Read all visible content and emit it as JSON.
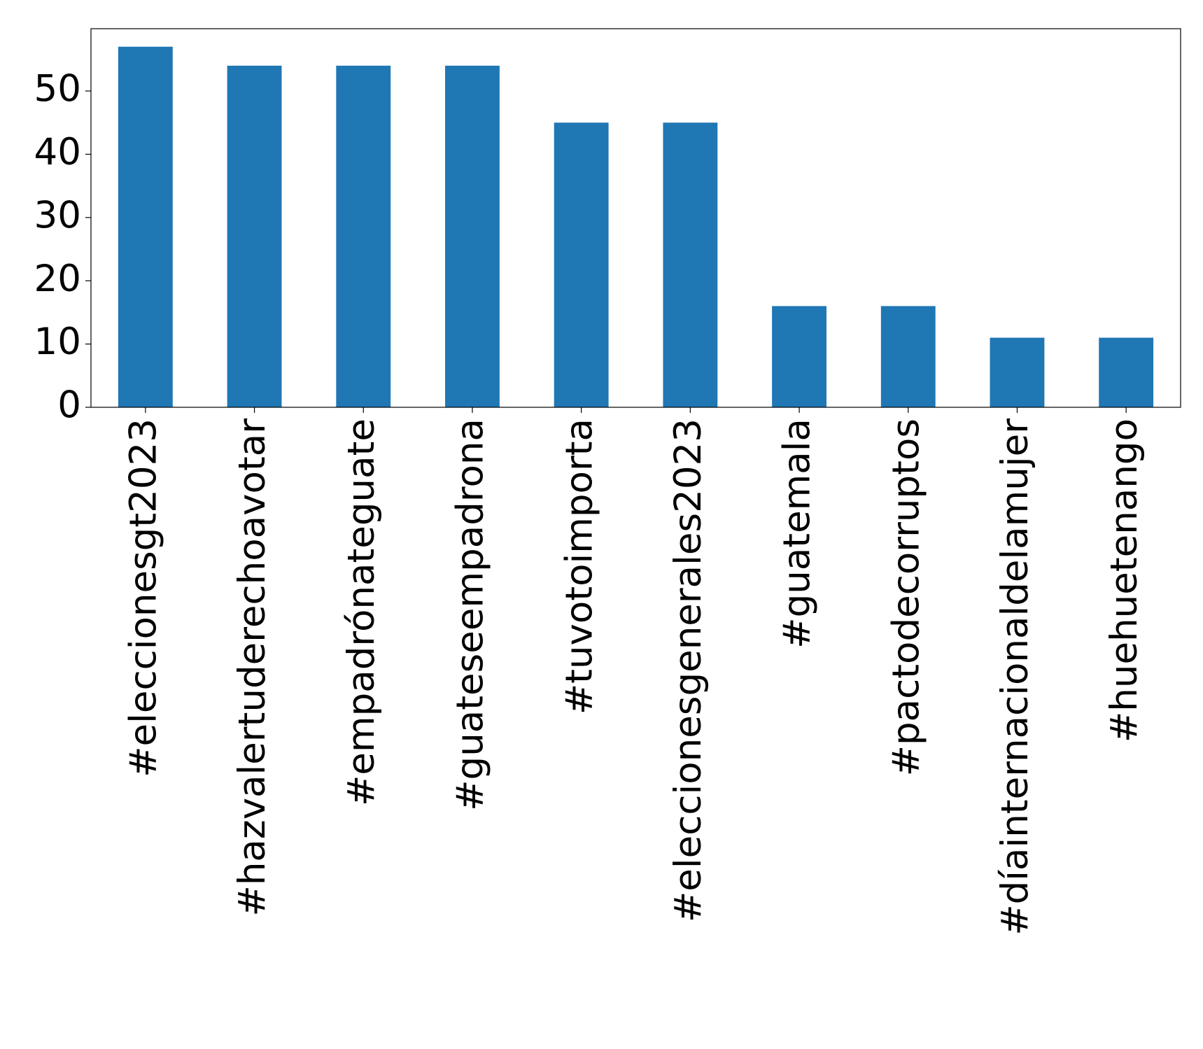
{
  "chart_data": {
    "type": "bar",
    "categories": [
      "#eleccionesgt2023",
      "#hazvalertuderechoavotar",
      "#empadrónateguate",
      "#guateseempadrona",
      "#tuvotoimporta",
      "#eleccionesgenerales2023",
      "#guatemala",
      "#pactodecorruptos",
      "#díainternacionaldelamujer",
      "#huehuetenango"
    ],
    "values": [
      57,
      54,
      54,
      54,
      45,
      45,
      16,
      16,
      11,
      11
    ],
    "color": "#1f77b4",
    "ylim": [
      0,
      59.85
    ],
    "yticks": [
      0,
      10,
      20,
      30,
      40,
      50
    ],
    "grid": false
  }
}
